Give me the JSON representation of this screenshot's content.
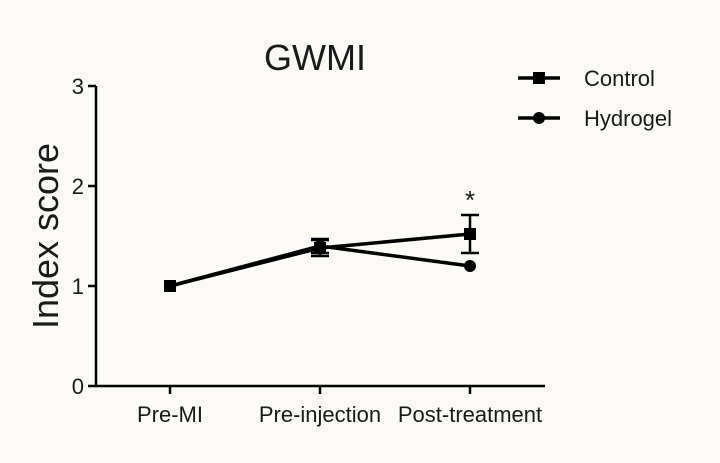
{
  "chart_data": {
    "type": "line",
    "title": "GWMI",
    "xlabel": "",
    "ylabel": "Index score",
    "categories": [
      "Pre-MI",
      "Pre-injection",
      "Post-treatment"
    ],
    "ylim": [
      0,
      3
    ],
    "yticks": [
      "0",
      "1",
      "2",
      "3"
    ],
    "grid": false,
    "legend_position": "top-right",
    "series": [
      {
        "name": "Control",
        "marker": "square",
        "values": [
          1.0,
          1.38,
          1.52
        ],
        "error": [
          0,
          0.08,
          0.19
        ],
        "color": "#000000"
      },
      {
        "name": "Hydrogel",
        "marker": "circle",
        "values": [
          1.0,
          1.4,
          1.2
        ],
        "error": [
          0,
          0.07,
          0.0
        ],
        "color": "#000000"
      }
    ],
    "annotations": [
      {
        "text": "*",
        "category": "Post-treatment",
        "value": 1.87
      }
    ]
  }
}
